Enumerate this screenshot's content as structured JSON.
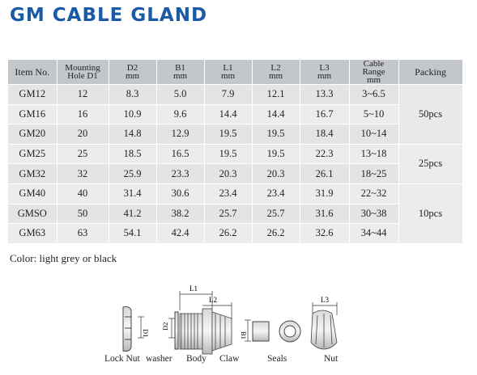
{
  "title": "GM CABLE GLAND",
  "table": {
    "headers": {
      "item": "Item No.",
      "mounting_1": "Mounting",
      "mounting_2": "Hole D1",
      "d2": "D2",
      "b1": "B1",
      "l1": "L1",
      "l2": "L2",
      "l3": "L3",
      "unit": "mm",
      "cable_1": "Cable",
      "cable_2": "Range",
      "cable_3": "mm",
      "packing": "Packing"
    },
    "rows": [
      {
        "item": "GM12",
        "hole": "12",
        "d2": "8.3",
        "b1": "5.0",
        "l1": "7.9",
        "l2": "12.1",
        "l3": "13.3",
        "range": "3~6.5"
      },
      {
        "item": "GM16",
        "hole": "16",
        "d2": "10.9",
        "b1": "9.6",
        "l1": "14.4",
        "l2": "14.4",
        "l3": "16.7",
        "range": "5~10"
      },
      {
        "item": "GM20",
        "hole": "20",
        "d2": "14.8",
        "b1": "12.9",
        "l1": "19.5",
        "l2": "19.5",
        "l3": "18.4",
        "range": "10~14"
      },
      {
        "item": "GM25",
        "hole": "25",
        "d2": "18.5",
        "b1": "16.5",
        "l1": "19.5",
        "l2": "19.5",
        "l3": "22.3",
        "range": "13~18"
      },
      {
        "item": "GM32",
        "hole": "32",
        "d2": "25.9",
        "b1": "23.3",
        "l1": "20.3",
        "l2": "20.3",
        "l3": "26.1",
        "range": "18~25"
      },
      {
        "item": "GM40",
        "hole": "40",
        "d2": "31.4",
        "b1": "30.6",
        "l1": "23.4",
        "l2": "23.4",
        "l3": "31.9",
        "range": "22~32"
      },
      {
        "item": "GMSO",
        "hole": "50",
        "d2": "41.2",
        "b1": "38.2",
        "l1": "25.7",
        "l2": "25.7",
        "l3": "31.6",
        "range": "30~38"
      },
      {
        "item": "GM63",
        "hole": "63",
        "d2": "54.1",
        "b1": "42.4",
        "l1": "26.2",
        "l2": "26.2",
        "l3": "32.6",
        "range": "34~44"
      }
    ],
    "packing": [
      "50pcs",
      "25pcs",
      "10pcs"
    ]
  },
  "color_note": "Color: light grey or black",
  "diagram": {
    "dims": {
      "l1": "L1",
      "l2": "L2",
      "l3": "L3",
      "d1": "D1",
      "d2": "D2",
      "b1": "B1"
    },
    "parts": {
      "lock_nut": "Lock Nut",
      "washer": "washer",
      "body": "Body",
      "claw": "Claw",
      "seals": "Seals",
      "nut": "Nut"
    }
  }
}
